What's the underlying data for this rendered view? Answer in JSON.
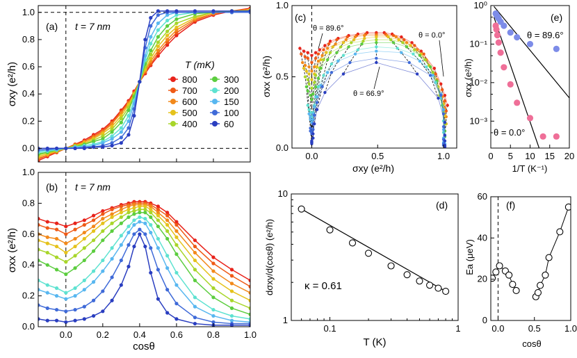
{
  "chart_data": [
    {
      "panel": "(a)",
      "type": "line",
      "annotation": "t = 7 nm",
      "xlabel": "",
      "ylabel": "σxy (e²/h)",
      "xlim": [
        -0.15,
        1.0
      ],
      "ylim": [
        -0.1,
        1.05
      ],
      "xticks": [
        "0.0",
        "0.2",
        "0.4",
        "0.6",
        "0.8",
        "1.0"
      ],
      "yticks": [
        "0.0",
        "0.2",
        "0.4",
        "0.6",
        "0.8",
        "1.0"
      ],
      "x": [
        -0.15,
        -0.1,
        -0.05,
        0.0,
        0.05,
        0.1,
        0.15,
        0.2,
        0.25,
        0.3,
        0.34,
        0.37,
        0.4,
        0.43,
        0.46,
        0.5,
        0.55,
        0.6,
        0.7,
        0.8,
        0.9,
        1.0
      ],
      "legend_title": "T (mK)",
      "series": [
        {
          "name": "800",
          "color": "#e8231b",
          "values": [
            -0.09,
            -0.06,
            -0.03,
            0.0,
            0.03,
            0.06,
            0.1,
            0.14,
            0.2,
            0.28,
            0.35,
            0.42,
            0.49,
            0.55,
            0.61,
            0.68,
            0.76,
            0.83,
            0.93,
            0.98,
            1.01,
            1.03
          ]
        },
        {
          "name": "700",
          "color": "#ef5a16",
          "values": [
            -0.08,
            -0.05,
            -0.03,
            0.0,
            0.03,
            0.05,
            0.09,
            0.13,
            0.19,
            0.27,
            0.34,
            0.41,
            0.49,
            0.56,
            0.62,
            0.7,
            0.78,
            0.85,
            0.94,
            0.99,
            1.01,
            1.02
          ]
        },
        {
          "name": "600",
          "color": "#f2891b",
          "values": [
            -0.07,
            -0.05,
            -0.02,
            0.0,
            0.02,
            0.05,
            0.08,
            0.12,
            0.18,
            0.26,
            0.33,
            0.4,
            0.49,
            0.57,
            0.64,
            0.72,
            0.8,
            0.87,
            0.95,
            0.99,
            1.01,
            1.02
          ]
        },
        {
          "name": "500",
          "color": "#e5c21c",
          "values": [
            -0.06,
            -0.04,
            -0.02,
            0.0,
            0.02,
            0.04,
            0.07,
            0.11,
            0.16,
            0.24,
            0.32,
            0.4,
            0.49,
            0.58,
            0.66,
            0.75,
            0.83,
            0.89,
            0.96,
            1.0,
            1.01,
            1.02
          ]
        },
        {
          "name": "400",
          "color": "#a8d62a",
          "values": [
            -0.05,
            -0.03,
            -0.02,
            0.0,
            0.02,
            0.03,
            0.06,
            0.09,
            0.14,
            0.22,
            0.3,
            0.39,
            0.49,
            0.6,
            0.69,
            0.78,
            0.86,
            0.92,
            0.97,
            1.0,
            1.01,
            1.01
          ]
        },
        {
          "name": "300",
          "color": "#5ccd3f",
          "values": [
            -0.04,
            -0.03,
            -0.01,
            0.0,
            0.01,
            0.03,
            0.05,
            0.07,
            0.12,
            0.19,
            0.28,
            0.38,
            0.49,
            0.62,
            0.72,
            0.82,
            0.9,
            0.95,
            0.99,
            1.0,
            1.01,
            1.01
          ]
        },
        {
          "name": "200",
          "color": "#5ee2d1",
          "values": [
            -0.03,
            -0.02,
            -0.01,
            0.0,
            0.01,
            0.02,
            0.03,
            0.05,
            0.09,
            0.15,
            0.24,
            0.35,
            0.49,
            0.65,
            0.77,
            0.87,
            0.94,
            0.98,
            1.0,
            1.0,
            1.0,
            1.01
          ]
        },
        {
          "name": "150",
          "color": "#58b7f0",
          "values": [
            -0.02,
            -0.01,
            -0.01,
            0.0,
            0.01,
            0.01,
            0.02,
            0.04,
            0.07,
            0.12,
            0.2,
            0.33,
            0.49,
            0.68,
            0.82,
            0.92,
            0.98,
            1.0,
            1.0,
            1.0,
            1.0,
            1.01
          ]
        },
        {
          "name": "100",
          "color": "#3f6ad8",
          "values": [
            -0.01,
            -0.01,
            0.0,
            0.0,
            0.0,
            0.01,
            0.01,
            0.02,
            0.04,
            0.08,
            0.15,
            0.29,
            0.49,
            0.74,
            0.9,
            0.98,
            1.0,
            1.0,
            1.0,
            1.0,
            1.0,
            1.0
          ]
        },
        {
          "name": "60",
          "color": "#2a3ec0",
          "values": [
            0.0,
            0.0,
            0.0,
            0.0,
            0.0,
            0.0,
            0.01,
            0.01,
            0.02,
            0.04,
            0.1,
            0.24,
            0.49,
            0.8,
            0.96,
            1.01,
            1.01,
            1.01,
            1.01,
            1.01,
            1.01,
            1.01
          ]
        }
      ]
    },
    {
      "panel": "(b)",
      "type": "line",
      "annotation": "t = 7 nm",
      "xlabel": "cosθ",
      "ylabel": "σxx (e²/h)",
      "xlim": [
        -0.15,
        1.0
      ],
      "ylim": [
        0.0,
        1.0
      ],
      "xticks": [
        "0.0",
        "0.2",
        "0.4",
        "0.6",
        "0.8",
        "1.0"
      ],
      "yticks": [
        "0.0",
        "0.2",
        "0.4",
        "0.6",
        "0.8",
        "1.0"
      ],
      "x": [
        -0.15,
        -0.1,
        -0.05,
        0.0,
        0.05,
        0.1,
        0.15,
        0.2,
        0.25,
        0.3,
        0.34,
        0.37,
        0.4,
        0.43,
        0.46,
        0.5,
        0.55,
        0.6,
        0.7,
        0.8,
        0.9,
        1.0
      ],
      "series": [
        {
          "name": "800",
          "color": "#e8231b",
          "values": [
            0.7,
            0.68,
            0.67,
            0.65,
            0.67,
            0.69,
            0.72,
            0.75,
            0.77,
            0.79,
            0.8,
            0.81,
            0.81,
            0.81,
            0.8,
            0.78,
            0.74,
            0.68,
            0.56,
            0.45,
            0.37,
            0.3
          ]
        },
        {
          "name": "700",
          "color": "#ef5a16",
          "values": [
            0.66,
            0.64,
            0.63,
            0.6,
            0.63,
            0.66,
            0.69,
            0.73,
            0.76,
            0.78,
            0.79,
            0.8,
            0.8,
            0.8,
            0.79,
            0.76,
            0.72,
            0.66,
            0.52,
            0.41,
            0.33,
            0.26
          ]
        },
        {
          "name": "600",
          "color": "#f2891b",
          "values": [
            0.6,
            0.58,
            0.57,
            0.54,
            0.57,
            0.61,
            0.65,
            0.7,
            0.73,
            0.76,
            0.78,
            0.79,
            0.79,
            0.79,
            0.78,
            0.74,
            0.69,
            0.62,
            0.48,
            0.36,
            0.28,
            0.22
          ]
        },
        {
          "name": "500",
          "color": "#e5c21c",
          "values": [
            0.56,
            0.54,
            0.52,
            0.48,
            0.52,
            0.57,
            0.62,
            0.67,
            0.71,
            0.74,
            0.76,
            0.77,
            0.78,
            0.78,
            0.76,
            0.72,
            0.66,
            0.58,
            0.43,
            0.31,
            0.23,
            0.17
          ]
        },
        {
          "name": "400",
          "color": "#a8d62a",
          "values": [
            0.5,
            0.48,
            0.45,
            0.42,
            0.46,
            0.51,
            0.56,
            0.62,
            0.67,
            0.71,
            0.74,
            0.75,
            0.76,
            0.76,
            0.74,
            0.69,
            0.62,
            0.53,
            0.37,
            0.25,
            0.17,
            0.12
          ]
        },
        {
          "name": "300",
          "color": "#5ccd3f",
          "values": [
            0.43,
            0.4,
            0.37,
            0.34,
            0.38,
            0.43,
            0.49,
            0.56,
            0.62,
            0.67,
            0.71,
            0.73,
            0.74,
            0.74,
            0.71,
            0.65,
            0.57,
            0.47,
            0.3,
            0.19,
            0.12,
            0.08
          ]
        },
        {
          "name": "200",
          "color": "#5ee2d1",
          "values": [
            0.3,
            0.27,
            0.25,
            0.22,
            0.25,
            0.3,
            0.36,
            0.43,
            0.51,
            0.59,
            0.65,
            0.69,
            0.71,
            0.7,
            0.66,
            0.57,
            0.46,
            0.35,
            0.19,
            0.11,
            0.07,
            0.05
          ]
        },
        {
          "name": "150",
          "color": "#58b7f0",
          "values": [
            0.24,
            0.22,
            0.2,
            0.18,
            0.2,
            0.24,
            0.29,
            0.36,
            0.44,
            0.53,
            0.61,
            0.66,
            0.68,
            0.67,
            0.61,
            0.51,
            0.38,
            0.27,
            0.13,
            0.07,
            0.04,
            0.03
          ]
        },
        {
          "name": "100",
          "color": "#3f6ad8",
          "values": [
            0.14,
            0.12,
            0.11,
            0.1,
            0.11,
            0.13,
            0.17,
            0.23,
            0.32,
            0.43,
            0.53,
            0.6,
            0.63,
            0.6,
            0.51,
            0.37,
            0.24,
            0.15,
            0.06,
            0.03,
            0.02,
            0.02
          ]
        },
        {
          "name": "60",
          "color": "#2a3ec0",
          "values": [
            0.05,
            0.04,
            0.04,
            0.03,
            0.04,
            0.05,
            0.07,
            0.1,
            0.17,
            0.27,
            0.39,
            0.52,
            0.6,
            0.52,
            0.35,
            0.18,
            0.09,
            0.05,
            0.02,
            0.01,
            0.01,
            0.01
          ]
        }
      ]
    },
    {
      "panel": "(c)",
      "type": "scatter",
      "xlabel": "σxy (e²/h)",
      "ylabel": "σxx (e²/h)",
      "xlim": [
        -0.15,
        1.1
      ],
      "ylim": [
        0.0,
        1.0
      ],
      "xticks": [
        "0.0",
        "0.5",
        "1.0"
      ],
      "yticks": [
        "0.0",
        "0.5",
        "1.0"
      ],
      "note": "semicircle parametric plot of panels (a) and (b); dashed black lines connect points of equal θ",
      "annotations": [
        "θ = 89.6°",
        "θ = 0.0°",
        "θ = 66.9°"
      ]
    },
    {
      "panel": "(d)",
      "type": "line",
      "scale": "log-log",
      "xlabel": "T (K)",
      "ylabel": "dσxy/d(cosθ) (e²/h)",
      "xlim": [
        0.05,
        1.0
      ],
      "ylim": [
        1,
        10
      ],
      "xticks": [
        "0.1",
        "1"
      ],
      "yticks": [
        "1",
        "10"
      ],
      "annotation": "κ = 0.61",
      "x": [
        0.06,
        0.1,
        0.15,
        0.2,
        0.3,
        0.4,
        0.5,
        0.6,
        0.7,
        0.8
      ],
      "values": [
        7.6,
        5.2,
        4.1,
        3.4,
        2.7,
        2.3,
        2.05,
        1.9,
        1.8,
        1.7
      ],
      "fit": {
        "x": [
          0.06,
          0.8
        ],
        "values": [
          7.6,
          1.7
        ]
      }
    },
    {
      "panel": "(e)",
      "type": "scatter",
      "scale": "semilog-y",
      "xlabel": "1/T (K⁻¹)",
      "ylabel": "σxx (e²/h)",
      "xlim": [
        0,
        20
      ],
      "ylim": [
        0.0002,
        1
      ],
      "xticks": [
        "0",
        "5",
        "10",
        "15",
        "20"
      ],
      "yticks": [
        "10⁰",
        "10⁻¹",
        "10⁻²",
        "10⁻³"
      ],
      "series": [
        {
          "name": "θ = 89.6°",
          "color": "#7d8ce8",
          "x": [
            1.25,
            1.43,
            1.67,
            2.0,
            2.5,
            3.33,
            5.0,
            6.67,
            10.0,
            16.7
          ],
          "values": [
            0.62,
            0.58,
            0.52,
            0.46,
            0.38,
            0.3,
            0.2,
            0.15,
            0.1,
            0.075
          ]
        },
        {
          "name": "θ = 0.0°",
          "color": "#ef6f98",
          "x": [
            1.25,
            1.43,
            1.67,
            2.0,
            2.5,
            3.33,
            5.0,
            6.67,
            10.0,
            13.3,
            16.7
          ],
          "values": [
            0.3,
            0.24,
            0.17,
            0.11,
            0.06,
            0.025,
            0.009,
            0.003,
            0.0012,
            0.0004,
            0.0004
          ]
        }
      ],
      "fits": [
        {
          "name": "fit 89.6°",
          "x": [
            0.8,
            20
          ],
          "values": [
            0.95,
            0.004
          ]
        },
        {
          "name": "fit 0.0°",
          "x": [
            0.8,
            12.3
          ],
          "values": [
            0.5,
            0.0002
          ]
        }
      ]
    },
    {
      "panel": "(f)",
      "type": "line",
      "xlabel": "cosθ",
      "ylabel": "Ea (μeV)",
      "xlim": [
        -0.1,
        1.0
      ],
      "ylim": [
        0,
        60
      ],
      "xticks": [
        "0.0",
        "0.5",
        "1.0"
      ],
      "yticks": [
        "0",
        "20",
        "40",
        "60"
      ],
      "x": [
        -0.08,
        -0.03,
        0.02,
        0.1,
        0.15,
        0.2,
        0.25,
        0.52,
        0.55,
        0.58,
        0.65,
        0.7,
        0.85,
        0.97
      ],
      "values": [
        20.5,
        23.5,
        26.5,
        24.0,
        22.0,
        17.5,
        14.5,
        11.5,
        13.5,
        17.0,
        22.0,
        30.5,
        43.0,
        55.0
      ]
    }
  ]
}
